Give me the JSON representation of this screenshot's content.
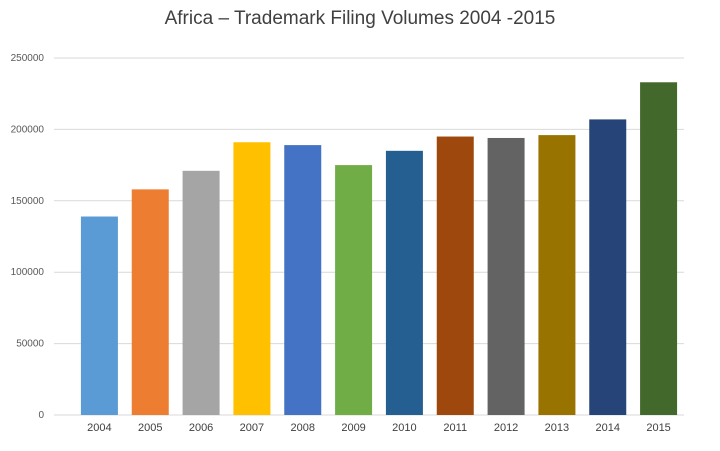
{
  "chart_data": {
    "type": "bar",
    "title": "Africa – Trademark Filing Volumes 2004 -2015",
    "xlabel": "",
    "ylabel": "",
    "categories": [
      "2004",
      "2005",
      "2006",
      "2007",
      "2008",
      "2009",
      "2010",
      "2011",
      "2012",
      "2013",
      "2014",
      "2015"
    ],
    "values": [
      139000,
      158000,
      171000,
      191000,
      189000,
      175000,
      185000,
      195000,
      194000,
      196000,
      207000,
      233000
    ],
    "ylim": [
      0,
      250000
    ],
    "yticks": [
      0,
      50000,
      100000,
      150000,
      200000,
      250000
    ],
    "grid": true,
    "legend": "none",
    "colors": [
      "#5b9bd5",
      "#ed7d31",
      "#a5a5a5",
      "#ffc000",
      "#4472c4",
      "#70ad47",
      "#255e91",
      "#9e480e",
      "#636363",
      "#997300",
      "#264478",
      "#43682b"
    ],
    "gridline_color": "#d9d9d9"
  }
}
